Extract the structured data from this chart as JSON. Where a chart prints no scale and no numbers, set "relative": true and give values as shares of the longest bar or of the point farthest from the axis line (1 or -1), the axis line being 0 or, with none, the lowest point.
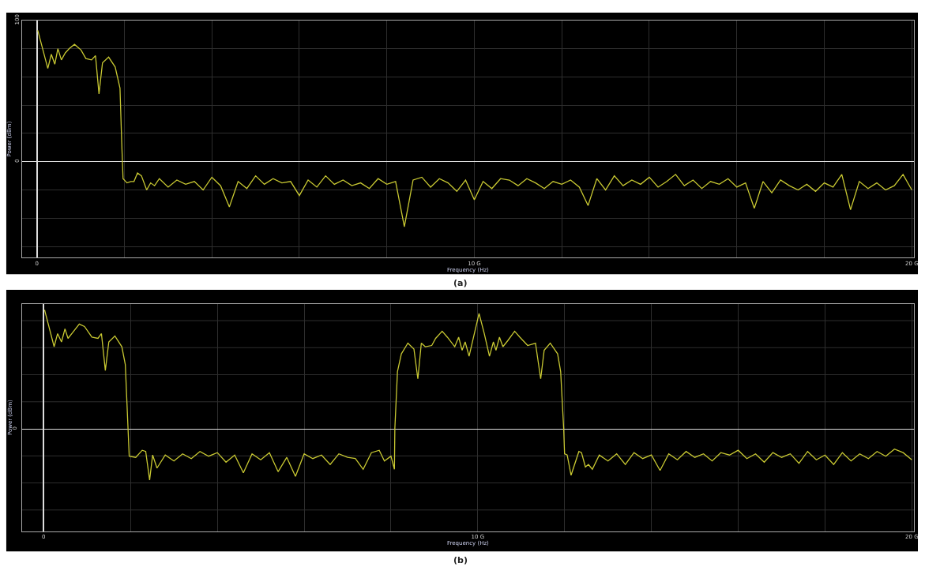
{
  "chart_data": [
    {
      "type": "line",
      "xlabel": "Frequency (Hz)",
      "ylabel": "Power (dBm)",
      "annotations": [
        "(a)"
      ],
      "xlim": [
        -0.34,
        20.05
      ],
      "xticks": [
        0,
        {
          "value": 2,
          "label": null
        },
        {
          "value": 4,
          "label": null
        },
        {
          "value": 6,
          "label": null
        },
        {
          "value": 8,
          "label": null
        },
        {
          "value": 10,
          "label": "10 G"
        },
        {
          "value": 12,
          "label": null
        },
        {
          "value": 14,
          "label": null
        },
        {
          "value": 16,
          "label": null
        },
        {
          "value": 18,
          "label": null
        },
        {
          "value": 20,
          "label": "20 G"
        }
      ],
      "ylim": [
        -68,
        100
      ],
      "yticks": [
        {
          "value": -60,
          "label": null
        },
        {
          "value": -40,
          "label": null
        },
        {
          "value": -20,
          "label": null
        },
        0,
        {
          "value": 20,
          "label": null
        },
        {
          "value": 40,
          "label": null
        },
        {
          "value": 60,
          "label": null
        },
        {
          "value": 80,
          "label": null
        },
        100
      ],
      "grid": true,
      "series": [
        {
          "color": "#c8c832",
          "x": [
            0.02,
            0.25,
            0.33,
            0.41,
            0.48,
            0.56,
            0.65,
            0.74,
            0.86,
            1.01,
            1.12,
            1.25,
            1.34,
            1.42,
            1.5,
            1.64,
            1.79,
            1.9,
            1.94,
            1.97,
            2.06,
            2.15,
            2.22,
            2.3,
            2.39,
            2.51,
            2.6,
            2.69,
            2.8,
            3.0,
            3.2,
            3.4,
            3.6,
            3.8,
            4.0,
            4.2,
            4.4,
            4.6,
            4.8,
            5.0,
            5.2,
            5.4,
            5.6,
            5.8,
            6.0,
            6.2,
            6.4,
            6.6,
            6.8,
            7.0,
            7.2,
            7.4,
            7.6,
            7.8,
            8.0,
            8.2,
            8.4,
            8.6,
            8.8,
            9.0,
            9.2,
            9.4,
            9.6,
            9.8,
            10.0,
            10.2,
            10.4,
            10.6,
            10.8,
            11.0,
            11.2,
            11.4,
            11.6,
            11.8,
            12.0,
            12.2,
            12.4,
            12.6,
            12.8,
            13.0,
            13.2,
            13.4,
            13.6,
            13.8,
            14.0,
            14.2,
            14.4,
            14.6,
            14.8,
            15.0,
            15.2,
            15.4,
            15.6,
            15.8,
            16.0,
            16.2,
            16.4,
            16.6,
            16.8,
            17.0,
            17.2,
            17.4,
            17.6,
            17.8,
            18.0,
            18.2,
            18.4,
            18.6,
            18.8,
            19.0,
            19.2,
            19.4,
            19.6,
            19.8,
            20.0
          ],
          "values": [
            93,
            66,
            76,
            69,
            80,
            72,
            77,
            80,
            83,
            79,
            73,
            72,
            75,
            48,
            70,
            74,
            67,
            52,
            13,
            -12,
            -15,
            -14,
            -14,
            -8,
            -10,
            -20,
            -15,
            -17,
            -12,
            -18,
            -13,
            -16,
            -14,
            -20,
            -11,
            -17,
            -32,
            -14,
            -19,
            -10,
            -16,
            -12,
            -15,
            -14,
            -24,
            -13,
            -18,
            -10,
            -16,
            -13,
            -17,
            -15,
            -19,
            -12,
            -16,
            -14,
            -46,
            -13,
            -11,
            -18,
            -12,
            -15,
            -21,
            -13,
            -27,
            -14,
            -19,
            -12,
            -13,
            -17,
            -12,
            -15,
            -19,
            -14,
            -16,
            -13,
            -18,
            -31,
            -12,
            -20,
            -10,
            -17,
            -13,
            -16,
            -11,
            -18,
            -14,
            -9,
            -17,
            -13,
            -19,
            -14,
            -16,
            -12,
            -18,
            -15,
            -33,
            -14,
            -22,
            -13,
            -17,
            -20,
            -16,
            -21,
            -15,
            -18,
            -9,
            -34,
            -14,
            -19,
            -15,
            -20,
            -17,
            -9,
            -20
          ]
        }
      ]
    },
    {
      "type": "line",
      "relative": true,
      "xlabel": "Frequency (Hz)",
      "ylabel": "Power (dBm)",
      "annotations": [
        "0",
        "(b)"
      ],
      "xlim": [
        -0.5,
        20.05
      ],
      "xticks": [
        0,
        {
          "value": 2,
          "label": null
        },
        {
          "value": 4,
          "label": null
        },
        {
          "value": 6,
          "label": null
        },
        {
          "value": 8,
          "label": null
        },
        {
          "value": 10,
          "label": "10 G"
        },
        {
          "value": 12,
          "label": null
        },
        {
          "value": 14,
          "label": null
        },
        {
          "value": 16,
          "label": null
        },
        {
          "value": 18,
          "label": null
        },
        {
          "value": 20,
          "label": "20 G"
        }
      ],
      "grid": true,
      "series": [
        {
          "color": "#c8c832",
          "x": [
            0.02,
            0.24,
            0.32,
            0.41,
            0.49,
            0.56,
            0.67,
            0.82,
            0.94,
            1.11,
            1.25,
            1.33,
            1.42,
            1.5,
            1.64,
            1.8,
            1.88,
            1.97,
            2.12,
            2.27,
            2.35,
            2.44,
            2.51,
            2.61,
            2.8,
            3.0,
            3.2,
            3.4,
            3.6,
            3.8,
            4.0,
            4.2,
            4.4,
            4.6,
            4.8,
            5.0,
            5.2,
            5.4,
            5.6,
            5.8,
            6.0,
            6.2,
            6.4,
            6.6,
            6.8,
            7.0,
            7.18,
            7.36,
            7.55,
            7.73,
            7.85,
            8.0,
            8.08,
            8.09,
            8.15,
            8.24,
            8.39,
            8.53,
            8.62,
            8.7,
            8.79,
            8.94,
            9.03,
            9.18,
            9.3,
            9.47,
            9.56,
            9.64,
            9.71,
            9.8,
            10.03,
            10.15,
            10.27,
            10.36,
            10.42,
            10.5,
            10.58,
            10.69,
            10.85,
            10.97,
            11.15,
            11.33,
            11.45,
            11.53,
            11.67,
            11.84,
            11.91,
            11.98,
            12.0,
            12.06,
            12.15,
            12.33,
            12.39,
            12.48,
            12.55,
            12.64,
            12.8,
            13.0,
            13.2,
            13.4,
            13.6,
            13.8,
            14.0,
            14.2,
            14.4,
            14.6,
            14.8,
            15.0,
            15.2,
            15.4,
            15.6,
            15.8,
            16.0,
            16.2,
            16.4,
            16.6,
            16.8,
            17.0,
            17.2,
            17.4,
            17.6,
            17.8,
            18.0,
            18.2,
            18.4,
            18.6,
            18.8,
            19.0,
            19.2,
            19.4,
            19.6,
            19.8,
            20.0
          ],
          "values": [
            1.0,
            0.69,
            0.8,
            0.73,
            0.84,
            0.76,
            0.81,
            0.88,
            0.86,
            0.77,
            0.76,
            0.8,
            0.49,
            0.73,
            0.78,
            0.69,
            0.54,
            -0.23,
            -0.24,
            -0.18,
            -0.19,
            -0.43,
            -0.22,
            -0.33,
            -0.22,
            -0.27,
            -0.21,
            -0.25,
            -0.19,
            -0.23,
            -0.2,
            -0.28,
            -0.22,
            -0.37,
            -0.21,
            -0.26,
            -0.2,
            -0.36,
            -0.24,
            -0.4,
            -0.21,
            -0.25,
            -0.22,
            -0.3,
            -0.21,
            -0.24,
            -0.25,
            -0.34,
            -0.2,
            -0.18,
            -0.27,
            -0.23,
            -0.34,
            0.0,
            0.48,
            0.63,
            0.72,
            0.67,
            0.42,
            0.72,
            0.69,
            0.7,
            0.76,
            0.82,
            0.77,
            0.69,
            0.77,
            0.66,
            0.73,
            0.61,
            0.97,
            0.8,
            0.61,
            0.73,
            0.66,
            0.77,
            0.69,
            0.74,
            0.82,
            0.77,
            0.7,
            0.72,
            0.42,
            0.66,
            0.72,
            0.63,
            0.48,
            0.0,
            -0.21,
            -0.22,
            -0.39,
            -0.19,
            -0.2,
            -0.32,
            -0.3,
            -0.34,
            -0.22,
            -0.27,
            -0.21,
            -0.3,
            -0.2,
            -0.25,
            -0.22,
            -0.35,
            -0.21,
            -0.26,
            -0.19,
            -0.24,
            -0.21,
            -0.27,
            -0.2,
            -0.22,
            -0.18,
            -0.25,
            -0.21,
            -0.28,
            -0.2,
            -0.24,
            -0.21,
            -0.29,
            -0.19,
            -0.26,
            -0.22,
            -0.3,
            -0.2,
            -0.27,
            -0.21,
            -0.25,
            -0.19,
            -0.23,
            -0.17,
            -0.2,
            -0.26
          ]
        }
      ]
    }
  ]
}
